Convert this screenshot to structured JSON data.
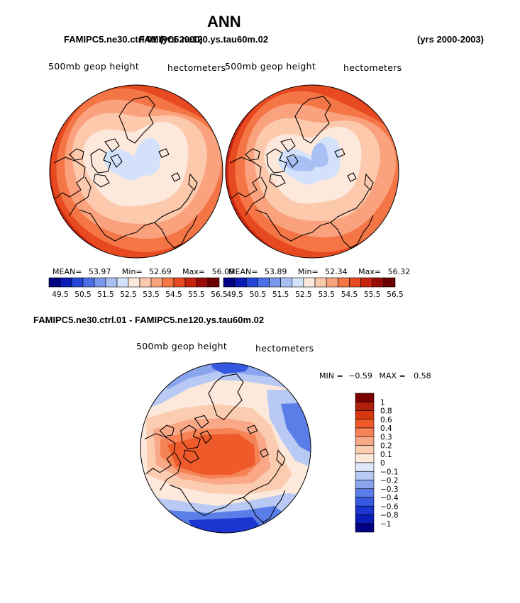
{
  "title": "ANN",
  "header": {
    "case1": "FAMIPC5.ne30.ctrl.01",
    "case1_years": "(yrs 2000)",
    "case2": "FAMIPC5.ne120.ys.tau60m.02",
    "case2_years": "(yrs 2000-2003)",
    "diff_title": "FAMIPC5.ne30.ctrl.01 - FAMIPC5.ne120.ys.tau60m.02"
  },
  "colors": {
    "main_levels": [
      "#000080",
      "#0a1cb5",
      "#2445d8",
      "#4a6fe6",
      "#7a97ee",
      "#a9c0f4",
      "#d3e2fa",
      "#fde9dc",
      "#fcc9ad",
      "#f9a27d",
      "#f47546",
      "#e74a20",
      "#c72410",
      "#990b05",
      "#6b0000"
    ],
    "diff_levels": [
      "#000080",
      "#0a1cb5",
      "#1a35d0",
      "#3559e0",
      "#5a7de8",
      "#8aa4ee",
      "#b8caf4",
      "#dfe8fa",
      "#fde9dc",
      "#fcccb0",
      "#f9a888",
      "#f68355",
      "#ef5a2a",
      "#d8380f",
      "#b0200a",
      "#7a0000"
    ],
    "coast": "#000000"
  },
  "chart_data": [
    {
      "type": "heatmap",
      "projection": "north-polar-stereographic",
      "case": "FAMIPC5.ne30.ctrl.01",
      "variable_label": "500mb geop height",
      "units_label": "hectometers",
      "mean_label": "MEAN=",
      "mean": "53.97",
      "min_label": "Min=",
      "min": "52.69",
      "max_label": "Max=",
      "max": "56.09",
      "levels": [
        "49.5",
        "50.5",
        "51.5",
        "52.5",
        "53.5",
        "54.5",
        "55.5",
        "56.5"
      ],
      "center_value": 52.69,
      "edge_value": 56.09
    },
    {
      "type": "heatmap",
      "projection": "north-polar-stereographic",
      "case": "FAMIPC5.ne120.ys.tau60m.02",
      "variable_label": "500mb geop height",
      "units_label": "hectometers",
      "mean_label": "MEAN=",
      "mean": "53.89",
      "min_label": "Min=",
      "min": "52.34",
      "max_label": "Max=",
      "max": "56.32",
      "levels": [
        "49.5",
        "50.5",
        "51.5",
        "52.5",
        "53.5",
        "54.5",
        "55.5",
        "56.5"
      ],
      "center_value": 52.34,
      "edge_value": 56.32
    },
    {
      "type": "heatmap",
      "projection": "north-polar-stereographic",
      "case": "FAMIPC5.ne30.ctrl.01 - FAMIPC5.ne120.ys.tau60m.02",
      "variable_label": "500mb geop height",
      "units_label": "hectometers",
      "min_label": "MIN =",
      "min": "−0.59",
      "max_label": "MAX =",
      "max": "0.58",
      "levels": [
        "1",
        "0.8",
        "0.6",
        "0.4",
        "0.3",
        "0.2",
        "0.1",
        "0",
        "−0.1",
        "−0.2",
        "−0.3",
        "−0.4",
        "−0.6",
        "−0.8",
        "−1"
      ]
    }
  ]
}
